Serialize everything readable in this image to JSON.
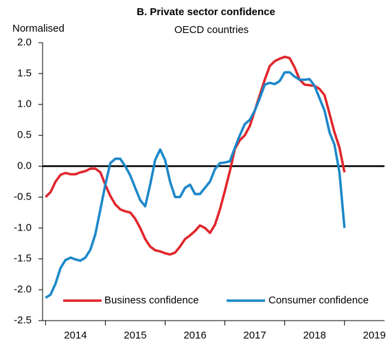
{
  "chart_data": {
    "type": "line",
    "title": "B. Private sector confidence",
    "subtitle": "OECD countries",
    "ylabel": "Normalised",
    "x": [
      2014.0,
      2014.083,
      2014.167,
      2014.25,
      2014.333,
      2014.417,
      2014.5,
      2014.583,
      2014.667,
      2014.75,
      2014.833,
      2014.917,
      2015.0,
      2015.083,
      2015.167,
      2015.25,
      2015.333,
      2015.417,
      2015.5,
      2015.583,
      2015.667,
      2015.75,
      2015.833,
      2015.917,
      2016.0,
      2016.083,
      2016.167,
      2016.25,
      2016.333,
      2016.417,
      2016.5,
      2016.583,
      2016.667,
      2016.75,
      2016.833,
      2016.917,
      2017.0,
      2017.083,
      2017.167,
      2017.25,
      2017.333,
      2017.417,
      2017.5,
      2017.583,
      2017.667,
      2017.75,
      2017.833,
      2017.917,
      2018.0,
      2018.083,
      2018.167,
      2018.25,
      2018.333,
      2018.417,
      2018.5,
      2018.583,
      2018.667,
      2018.75,
      2018.833,
      2018.917,
      2019.0
    ],
    "series": [
      {
        "name": "Business confidence",
        "color": "#e0262b",
        "values": [
          -0.5,
          -0.42,
          -0.25,
          -0.14,
          -0.11,
          -0.13,
          -0.13,
          -0.1,
          -0.08,
          -0.04,
          -0.04,
          -0.1,
          -0.3,
          -0.48,
          -0.62,
          -0.7,
          -0.73,
          -0.75,
          -0.85,
          -1.0,
          -1.18,
          -1.3,
          -1.36,
          -1.38,
          -1.41,
          -1.43,
          -1.4,
          -1.3,
          -1.18,
          -1.12,
          -1.05,
          -0.96,
          -1.0,
          -1.08,
          -0.95,
          -0.7,
          -0.4,
          -0.08,
          0.28,
          0.42,
          0.5,
          0.65,
          0.9,
          1.15,
          1.4,
          1.62,
          1.7,
          1.74,
          1.77,
          1.75,
          1.6,
          1.4,
          1.32,
          1.31,
          1.3,
          1.25,
          1.15,
          0.85,
          0.55,
          0.3,
          -0.1
        ]
      },
      {
        "name": "Consumer confidence",
        "color": "#1b87c9",
        "values": [
          -2.13,
          -2.08,
          -1.9,
          -1.65,
          -1.52,
          -1.48,
          -1.51,
          -1.53,
          -1.48,
          -1.35,
          -1.1,
          -0.7,
          -0.3,
          0.05,
          0.12,
          0.12,
          0.0,
          -0.15,
          -0.35,
          -0.55,
          -0.65,
          -0.3,
          0.1,
          0.27,
          0.1,
          -0.25,
          -0.5,
          -0.5,
          -0.35,
          -0.3,
          -0.45,
          -0.45,
          -0.35,
          -0.25,
          -0.05,
          0.05,
          0.06,
          0.08,
          0.3,
          0.5,
          0.68,
          0.75,
          0.9,
          1.1,
          1.32,
          1.35,
          1.33,
          1.38,
          1.52,
          1.52,
          1.45,
          1.4,
          1.4,
          1.41,
          1.3,
          1.1,
          0.9,
          0.55,
          0.35,
          -0.1,
          -1.0
        ]
      }
    ],
    "xlim": [
      2013.95,
      2019.67
    ],
    "xticks": [
      {
        "value": 2014.5,
        "label": "2014"
      },
      {
        "value": 2015.5,
        "label": "2015"
      },
      {
        "value": 2016.5,
        "label": "2016"
      },
      {
        "value": 2017.5,
        "label": "2017"
      },
      {
        "value": 2018.5,
        "label": "2018"
      },
      {
        "value": 2019.5,
        "label": "2019"
      }
    ],
    "ylim": [
      -2.5,
      2.0
    ],
    "yticks": [
      -2.5,
      {
        "value": -2,
        "label": "-2.0"
      },
      -1.5,
      {
        "value": -1,
        "label": "-1.0"
      },
      -0.5,
      {
        "value": 0,
        "label": "0.0"
      },
      0.5,
      {
        "value": 1,
        "label": "1.0"
      },
      1.5,
      {
        "value": 2,
        "label": "2.0"
      }
    ],
    "zero_line": true,
    "legend": "lower left"
  }
}
